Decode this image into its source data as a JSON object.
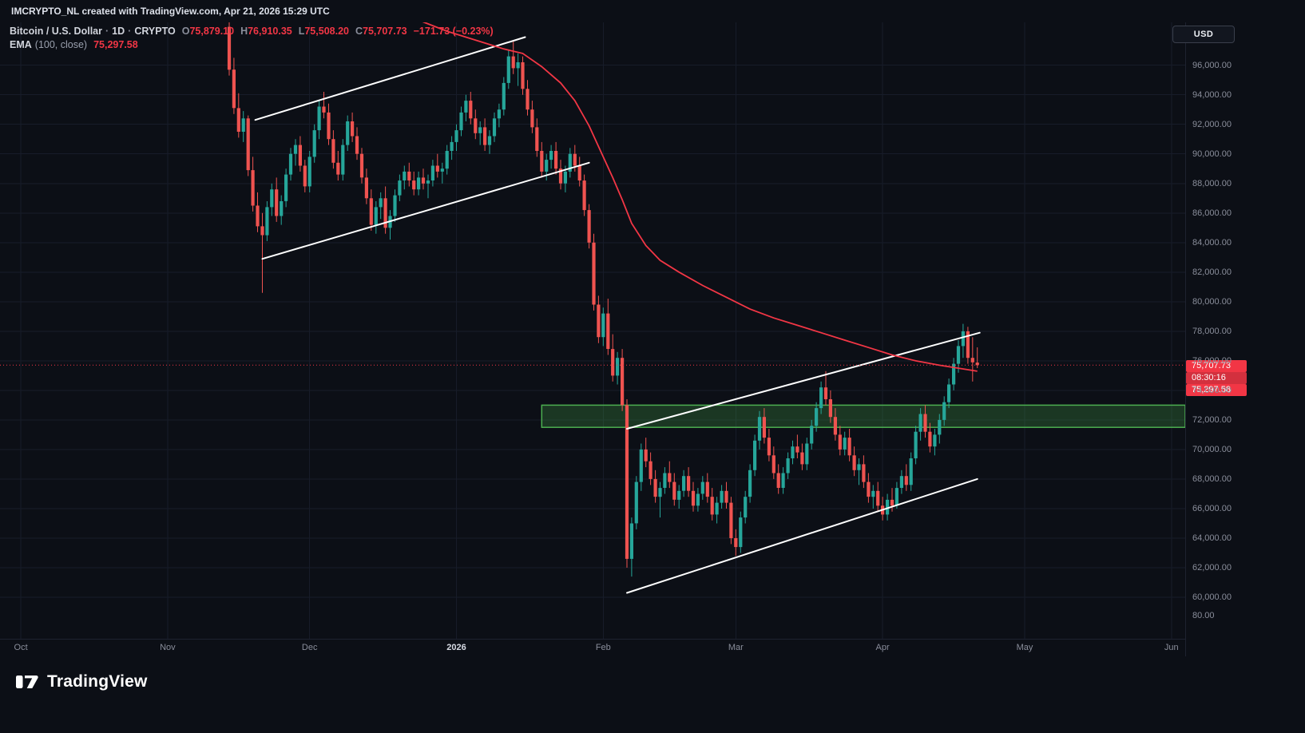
{
  "header_bar": {
    "text": "IMCRYPTO_NL created with TradingView.com, Apr 21, 2026 15:29 UTC"
  },
  "legend": {
    "symbol_title": "Bitcoin / U.S. Dollar",
    "sep": "·",
    "interval": "1D",
    "exchange": "CRYPTO",
    "ohlc": {
      "o_label": "O",
      "o": "75,879.10",
      "h_label": "H",
      "h": "76,910.35",
      "l_label": "L",
      "l": "75,508.20",
      "c_label": "C",
      "c": "75,707.73",
      "change": "−171.73 (−0.23%)"
    },
    "ema": {
      "label": "EMA",
      "params": "(100, close)",
      "value": "75,297.58"
    }
  },
  "currency_button": "USD",
  "price_axis": {
    "ticks": [
      96000,
      94000,
      92000,
      90000,
      88000,
      86000,
      84000,
      82000,
      80000,
      78000,
      76000,
      74000,
      72000,
      70000,
      68000,
      66000,
      64000,
      62000,
      60000
    ],
    "extra_label": "80.00"
  },
  "time_axis": {
    "labels": [
      {
        "label": "Oct",
        "i": -44,
        "major": false
      },
      {
        "label": "Nov",
        "i": -13,
        "major": false
      },
      {
        "label": "Dec",
        "i": 17,
        "major": false
      },
      {
        "label": "2026",
        "i": 48,
        "major": true
      },
      {
        "label": "Feb",
        "i": 79,
        "major": false
      },
      {
        "label": "Mar",
        "i": 107,
        "major": false
      },
      {
        "label": "Apr",
        "i": 138,
        "major": false
      },
      {
        "label": "May",
        "i": 168,
        "major": false
      },
      {
        "label": "Jun",
        "i": 199,
        "major": false
      }
    ]
  },
  "price_badges": {
    "last_price": "75,707.73",
    "countdown": "08:30:16",
    "ema_value": "75,297.58"
  },
  "footer": {
    "brand": "TradingView"
  },
  "chart_data": {
    "type": "candlestick",
    "title": "Bitcoin / U.S. Dollar",
    "symbol": "BTC/USD",
    "exchange": "CRYPTO",
    "interval": "1D",
    "start_date": "2025-11-14",
    "last_price": 75707.73,
    "change": -171.73,
    "change_pct": -0.23,
    "x_range": [
      -48.4,
      201.9
    ],
    "price_range": [
      57300,
      98900
    ],
    "colors": {
      "up": "#26a69a",
      "down": "#ef5350",
      "ema": "#f23645",
      "trendline": "#ffffff",
      "grid": "#171c29"
    },
    "candles": [
      [
        98600,
        99500,
        95300,
        95700
      ],
      [
        95700,
        96500,
        92700,
        93100
      ],
      [
        93100,
        94100,
        91100,
        91500
      ],
      [
        91500,
        92900,
        90800,
        92400
      ],
      [
        92400,
        92600,
        88500,
        88900
      ],
      [
        88900,
        89800,
        86100,
        86500
      ],
      [
        86500,
        87400,
        84700,
        85100
      ],
      [
        85100,
        86000,
        80600,
        84500
      ],
      [
        84500,
        86800,
        84100,
        86400
      ],
      [
        86400,
        88000,
        85800,
        87600
      ],
      [
        87600,
        88400,
        85400,
        85800
      ],
      [
        85800,
        87200,
        85200,
        86800
      ],
      [
        86800,
        89000,
        86400,
        88600
      ],
      [
        88600,
        90400,
        88200,
        90000
      ],
      [
        90000,
        91000,
        89200,
        90600
      ],
      [
        90600,
        91200,
        88800,
        89200
      ],
      [
        89200,
        89600,
        87400,
        87800
      ],
      [
        87800,
        90200,
        87400,
        89800
      ],
      [
        89800,
        92000,
        89400,
        91600
      ],
      [
        91600,
        93600,
        91000,
        93200
      ],
      [
        93200,
        94200,
        92400,
        92800
      ],
      [
        92800,
        93400,
        90600,
        91000
      ],
      [
        91000,
        91600,
        89000,
        89400
      ],
      [
        89400,
        90200,
        88200,
        88600
      ],
      [
        88600,
        91000,
        88200,
        90600
      ],
      [
        90600,
        92600,
        90200,
        92200
      ],
      [
        92200,
        92800,
        90800,
        91200
      ],
      [
        91200,
        91800,
        89600,
        90000
      ],
      [
        90000,
        90400,
        88000,
        88400
      ],
      [
        88400,
        89000,
        86600,
        87000
      ],
      [
        87000,
        87600,
        84800,
        85200
      ],
      [
        85200,
        86800,
        84600,
        86400
      ],
      [
        86400,
        87400,
        85600,
        87000
      ],
      [
        87000,
        87800,
        84600,
        85000
      ],
      [
        85000,
        86200,
        84200,
        85800
      ],
      [
        85800,
        87600,
        85400,
        87200
      ],
      [
        87200,
        88600,
        86800,
        88200
      ],
      [
        88200,
        89200,
        87600,
        88800
      ],
      [
        88800,
        89400,
        87800,
        88200
      ],
      [
        88200,
        88800,
        87200,
        87600
      ],
      [
        87600,
        88800,
        87200,
        88400
      ],
      [
        88400,
        89000,
        87600,
        88000
      ],
      [
        88000,
        88600,
        87000,
        88200
      ],
      [
        88200,
        89600,
        87800,
        89200
      ],
      [
        89200,
        90000,
        88400,
        88800
      ],
      [
        88800,
        89400,
        88000,
        89000
      ],
      [
        89000,
        90600,
        88600,
        90200
      ],
      [
        90200,
        91200,
        89600,
        90800
      ],
      [
        90800,
        92000,
        90200,
        91600
      ],
      [
        91600,
        93200,
        91200,
        92800
      ],
      [
        92800,
        94000,
        92200,
        93600
      ],
      [
        93600,
        94200,
        92000,
        92400
      ],
      [
        92400,
        93000,
        91000,
        91400
      ],
      [
        91400,
        92200,
        90600,
        91800
      ],
      [
        91800,
        92400,
        90200,
        90600
      ],
      [
        90600,
        91600,
        90000,
        91200
      ],
      [
        91200,
        92800,
        90800,
        92400
      ],
      [
        92400,
        93400,
        91800,
        93000
      ],
      [
        93000,
        95200,
        92600,
        94800
      ],
      [
        94800,
        97000,
        94400,
        96600
      ],
      [
        96600,
        97600,
        95400,
        95800
      ],
      [
        95800,
        96800,
        94600,
        96200
      ],
      [
        96200,
        96600,
        94000,
        94400
      ],
      [
        94400,
        95000,
        92600,
        93000
      ],
      [
        93000,
        93600,
        91400,
        91800
      ],
      [
        91800,
        92400,
        89800,
        90200
      ],
      [
        90200,
        90800,
        88400,
        88800
      ],
      [
        88800,
        90000,
        88200,
        89600
      ],
      [
        89600,
        90600,
        89000,
        90200
      ],
      [
        90200,
        90800,
        88600,
        89000
      ],
      [
        89000,
        89600,
        87600,
        88000
      ],
      [
        88000,
        89200,
        87400,
        88800
      ],
      [
        88800,
        90400,
        88400,
        90000
      ],
      [
        90000,
        90600,
        88800,
        89200
      ],
      [
        89200,
        89800,
        87800,
        88200
      ],
      [
        88200,
        88600,
        85800,
        86200
      ],
      [
        86200,
        86600,
        83600,
        84000
      ],
      [
        84000,
        84600,
        79400,
        79800
      ],
      [
        79800,
        80400,
        77200,
        77600
      ],
      [
        77600,
        79600,
        77000,
        79200
      ],
      [
        79200,
        80200,
        76400,
        76800
      ],
      [
        76800,
        77800,
        74600,
        75000
      ],
      [
        75000,
        76600,
        74400,
        76200
      ],
      [
        76200,
        76800,
        72600,
        73000
      ],
      [
        73000,
        73400,
        62000,
        62600
      ],
      [
        62600,
        65400,
        61400,
        65000
      ],
      [
        65000,
        68200,
        64600,
        67800
      ],
      [
        67800,
        70400,
        67200,
        70000
      ],
      [
        70000,
        70800,
        68800,
        69200
      ],
      [
        69200,
        69800,
        67600,
        68000
      ],
      [
        68000,
        68600,
        66400,
        66800
      ],
      [
        66800,
        67800,
        65400,
        67400
      ],
      [
        67400,
        68800,
        67000,
        68400
      ],
      [
        68400,
        69200,
        67400,
        67800
      ],
      [
        67800,
        68400,
        66200,
        66600
      ],
      [
        66600,
        67600,
        66000,
        67200
      ],
      [
        67200,
        68600,
        66800,
        68200
      ],
      [
        68200,
        68800,
        66800,
        67200
      ],
      [
        67200,
        67800,
        65800,
        66200
      ],
      [
        66200,
        67400,
        65800,
        67000
      ],
      [
        67000,
        68200,
        66600,
        67800
      ],
      [
        67800,
        68400,
        66400,
        66800
      ],
      [
        66800,
        67400,
        65200,
        65600
      ],
      [
        65600,
        66800,
        65000,
        66400
      ],
      [
        66400,
        67600,
        66000,
        67200
      ],
      [
        67200,
        67800,
        66000,
        66400
      ],
      [
        66400,
        66800,
        63600,
        64000
      ],
      [
        64000,
        64600,
        62800,
        63400
      ],
      [
        63400,
        65800,
        63000,
        65400
      ],
      [
        65400,
        67200,
        65000,
        66800
      ],
      [
        66800,
        69000,
        66400,
        68600
      ],
      [
        68600,
        71000,
        68200,
        70600
      ],
      [
        70600,
        72600,
        70000,
        72200
      ],
      [
        72200,
        72800,
        70400,
        70800
      ],
      [
        70800,
        71400,
        69200,
        69600
      ],
      [
        69600,
        70200,
        68000,
        68400
      ],
      [
        68400,
        69000,
        67000,
        67400
      ],
      [
        67400,
        68800,
        67000,
        68400
      ],
      [
        68400,
        69800,
        68000,
        69400
      ],
      [
        69400,
        70600,
        69000,
        70200
      ],
      [
        70200,
        71000,
        69400,
        69800
      ],
      [
        69800,
        70400,
        68600,
        69000
      ],
      [
        69000,
        70800,
        68600,
        70400
      ],
      [
        70400,
        72000,
        70000,
        71600
      ],
      [
        71600,
        73200,
        71200,
        72800
      ],
      [
        72800,
        74600,
        72400,
        74200
      ],
      [
        74200,
        75300,
        73000,
        73400
      ],
      [
        73400,
        74000,
        71800,
        72200
      ],
      [
        72200,
        72800,
        70600,
        71000
      ],
      [
        71000,
        71600,
        69600,
        70000
      ],
      [
        70000,
        71200,
        69600,
        70800
      ],
      [
        70800,
        71400,
        69200,
        69600
      ],
      [
        69600,
        70200,
        68200,
        68600
      ],
      [
        68600,
        69400,
        67600,
        69000
      ],
      [
        69000,
        69600,
        67400,
        67800
      ],
      [
        67800,
        68400,
        66400,
        66800
      ],
      [
        66800,
        67600,
        66000,
        67200
      ],
      [
        67200,
        67800,
        65800,
        66200
      ],
      [
        66200,
        66800,
        65200,
        65600
      ],
      [
        65600,
        67000,
        65200,
        66600
      ],
      [
        66600,
        67400,
        65800,
        66200
      ],
      [
        66200,
        67800,
        66000,
        67400
      ],
      [
        67400,
        68600,
        67000,
        68200
      ],
      [
        68200,
        69000,
        67200,
        67600
      ],
      [
        67600,
        69800,
        67200,
        69400
      ],
      [
        69400,
        71600,
        69000,
        71200
      ],
      [
        71200,
        72800,
        70600,
        72400
      ],
      [
        72400,
        73000,
        70800,
        71200
      ],
      [
        71200,
        71800,
        69800,
        70200
      ],
      [
        70200,
        71400,
        69600,
        71000
      ],
      [
        71000,
        72400,
        70400,
        72000
      ],
      [
        72000,
        73600,
        71600,
        73200
      ],
      [
        73200,
        74800,
        72800,
        74400
      ],
      [
        74400,
        76200,
        74000,
        75800
      ],
      [
        75800,
        77400,
        75200,
        77000
      ],
      [
        77000,
        78500,
        76200,
        78000
      ],
      [
        78000,
        78300,
        75800,
        76200
      ],
      [
        76200,
        77600,
        74600,
        75900
      ],
      [
        75879.1,
        76910.35,
        75508.2,
        75707.73
      ]
    ],
    "ema": {
      "period": 100,
      "source": "close",
      "last_value": 75297.58,
      "points": [
        [
          38,
          99300
        ],
        [
          42,
          98800
        ],
        [
          46,
          98300
        ],
        [
          50,
          97900
        ],
        [
          54,
          97500
        ],
        [
          58,
          97100
        ],
        [
          62,
          96800
        ],
        [
          66,
          95900
        ],
        [
          70,
          94800
        ],
        [
          73,
          93600
        ],
        [
          76,
          91900
        ],
        [
          79,
          89800
        ],
        [
          81,
          88400
        ],
        [
          83,
          86900
        ],
        [
          85,
          85300
        ],
        [
          88,
          83800
        ],
        [
          91,
          82800
        ],
        [
          95,
          82000
        ],
        [
          100,
          81100
        ],
        [
          105,
          80300
        ],
        [
          110,
          79500
        ],
        [
          115,
          78900
        ],
        [
          120,
          78400
        ],
        [
          125,
          77900
        ],
        [
          130,
          77400
        ],
        [
          135,
          76900
        ],
        [
          140,
          76400
        ],
        [
          145,
          76000
        ],
        [
          150,
          75700
        ],
        [
          154,
          75500
        ],
        [
          158,
          75298
        ]
      ]
    },
    "trendlines": [
      {
        "name": "upper-channel-top-trendline",
        "i1": 5.5,
        "p1": 92300,
        "i2": 62.5,
        "p2": 97900
      },
      {
        "name": "upper-channel-bottom-trendline",
        "i1": 7,
        "p1": 82900,
        "i2": 76,
        "p2": 89400
      },
      {
        "name": "lower-channel-top-trendline",
        "i1": 84,
        "p1": 71400,
        "i2": 158.5,
        "p2": 77900
      },
      {
        "name": "lower-channel-bottom-trendline",
        "i1": 84,
        "p1": 60300,
        "i2": 158,
        "p2": 68000
      }
    ],
    "zone": {
      "i_start": 66,
      "i_end": 202,
      "price_top": 73000,
      "price_bottom": 71500,
      "fill": "rgba(67,160,71,0.28)",
      "stroke": "#4caf50"
    }
  }
}
